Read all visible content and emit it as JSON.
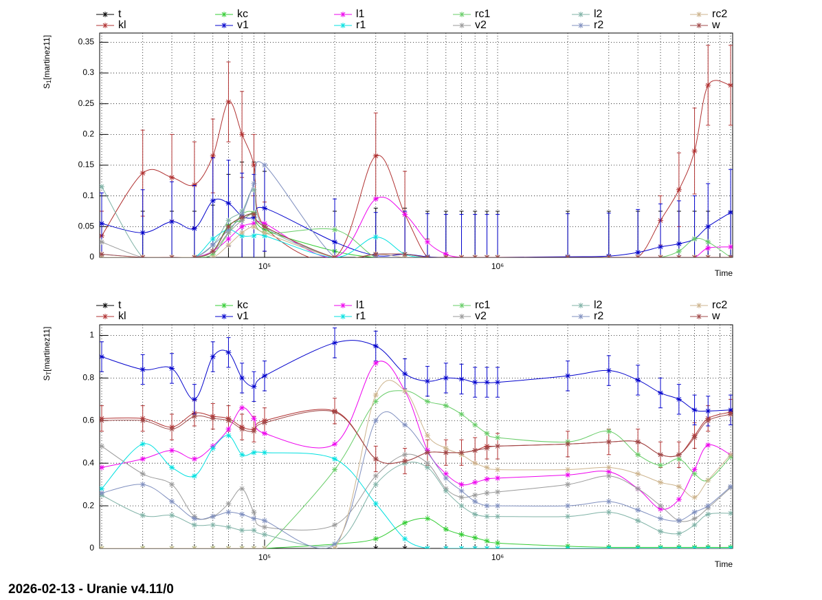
{
  "chart_data": [
    {
      "type": "line",
      "logx": true,
      "grid": true,
      "xlabel": "Time",
      "ylabel": [
        "S",
        "1",
        "[martinez11]"
      ],
      "x": [
        20000,
        30000,
        40000,
        50000,
        60000,
        70000,
        80000,
        90000,
        100000,
        200000,
        300000,
        400000,
        500000,
        600000,
        700000,
        800000,
        900000,
        1000000,
        2000000,
        3000000,
        4000000,
        5000000,
        6000000,
        7000000,
        8000000,
        10000000
      ],
      "xlim": [
        19600,
        10200000
      ],
      "xticks": [
        {
          "value": 100000,
          "label": "10⁵"
        },
        {
          "value": 1000000,
          "label": "10⁶"
        }
      ],
      "xminor": [
        20000,
        30000,
        40000,
        50000,
        60000,
        70000,
        80000,
        90000,
        200000,
        300000,
        400000,
        500000,
        600000,
        700000,
        800000,
        900000,
        2000000,
        3000000,
        4000000,
        5000000,
        6000000,
        7000000,
        8000000,
        9000000,
        10000000
      ],
      "ylim": [
        0,
        0.365
      ],
      "yticks": [
        0,
        0.05,
        0.1,
        0.15,
        0.2,
        0.25,
        0.3,
        0.35
      ],
      "series": [
        {
          "name": "t",
          "color": "#000000",
          "values": [
            0,
            0,
            0,
            0,
            0.01,
            0.05,
            0.065,
            0.07,
            0.05,
            0,
            0.005,
            0.005,
            0,
            0,
            0,
            0,
            0,
            0,
            0,
            0,
            0,
            0,
            0,
            0,
            0,
            0
          ],
          "errors": [
            0.075,
            0.075,
            0.075,
            0.075,
            0.075,
            0.085,
            0.09,
            0.085,
            0.09,
            0.075,
            0.075,
            0.075,
            0.075,
            0.075,
            0.075,
            0.075,
            0.075,
            0.075,
            0.075,
            0.075,
            0.075,
            0.075,
            0.075,
            0.075,
            0.075,
            0.075
          ]
        },
        {
          "name": "kl",
          "color": "#b03030",
          "values": [
            0.035,
            0.137,
            0.13,
            0.118,
            0.165,
            0.253,
            0.2,
            0.15,
            0.05,
            0,
            0.165,
            0.07,
            0,
            0,
            0,
            0,
            0,
            0,
            0,
            0,
            0,
            0.06,
            0.11,
            0.173,
            0.28,
            0.28
          ],
          "errors": [
            0.04,
            0.07,
            0.07,
            0.07,
            0.06,
            0.065,
            0.07,
            0.05,
            0.04,
            0.01,
            0.07,
            0.07,
            0.03,
            0,
            0,
            0,
            0,
            0,
            0,
            0,
            0,
            0.04,
            0.06,
            0.07,
            0.065,
            0.065
          ]
        },
        {
          "name": "kc",
          "color": "#33cc33",
          "values": [
            0,
            0,
            0,
            0,
            0.01,
            0.052,
            0.06,
            0.072,
            0.045,
            0.01,
            0,
            0,
            0,
            0,
            0,
            0,
            0,
            0,
            0,
            0,
            0,
            0,
            0,
            0,
            0,
            0
          ]
        },
        {
          "name": "v1",
          "color": "#0000cc",
          "values": [
            0.055,
            0.04,
            0.058,
            0.047,
            0.092,
            0.088,
            0.067,
            0.065,
            0.08,
            0.025,
            0.003,
            0.005,
            0.001,
            0,
            0,
            0,
            0,
            0,
            0.001,
            0.002,
            0.008,
            0.017,
            0.022,
            0.03,
            0.05,
            0.073
          ],
          "errors": [
            0.05,
            0.07,
            0.065,
            0.07,
            0.07,
            0.07,
            0.07,
            0.07,
            0.07,
            0.07,
            0.07,
            0.07,
            0.07,
            0.07,
            0.07,
            0.07,
            0.07,
            0.07,
            0.07,
            0.07,
            0.07,
            0.07,
            0.07,
            0.07,
            0.07,
            0.07
          ]
        },
        {
          "name": "l1",
          "color": "#ee00ee",
          "values": [
            0,
            0,
            0,
            0,
            0.01,
            0.03,
            0.05,
            0.055,
            0.055,
            0,
            0.095,
            0.07,
            0.025,
            0.005,
            0,
            0,
            0,
            0,
            0,
            0,
            0,
            0,
            0,
            0,
            0.015,
            0.017
          ]
        },
        {
          "name": "r1",
          "color": "#00e0e0",
          "values": [
            0,
            0,
            0,
            0,
            0.03,
            0.045,
            0.035,
            0.035,
            0.035,
            0,
            0.033,
            0.005,
            0,
            0,
            0,
            0,
            0,
            0,
            0,
            0,
            0,
            0,
            0,
            0,
            0,
            0
          ]
        },
        {
          "name": "rc1",
          "color": "#66cc66",
          "values": [
            0,
            0,
            0,
            0,
            0.005,
            0.04,
            0.07,
            0.072,
            0.04,
            0.045,
            0,
            0,
            0,
            0,
            0,
            0,
            0,
            0,
            0,
            0,
            0,
            0,
            0.01,
            0.03,
            0.025,
            0
          ]
        },
        {
          "name": "v2",
          "color": "#999999",
          "values": [
            0.025,
            0,
            0,
            0,
            0.01,
            0.04,
            0.06,
            0.07,
            0.05,
            0,
            0,
            0,
            0,
            0,
            0,
            0,
            0,
            0,
            0,
            0,
            0,
            0,
            0,
            0,
            0,
            0
          ]
        },
        {
          "name": "l2",
          "color": "#7fb2a6",
          "values": [
            0.115,
            0,
            0,
            0,
            0.02,
            0.06,
            0.075,
            0.11,
            0.05,
            0,
            0,
            0,
            0,
            0,
            0,
            0,
            0,
            0,
            0,
            0,
            0,
            0,
            0,
            0,
            0,
            0
          ]
        },
        {
          "name": "r2",
          "color": "#7f8fbf",
          "values": [
            0.005,
            0,
            0,
            0,
            0.02,
            0.045,
            0.07,
            0.12,
            0.15,
            0,
            0,
            0,
            0,
            0,
            0,
            0,
            0,
            0,
            0,
            0,
            0,
            0,
            0,
            0,
            0,
            0
          ]
        },
        {
          "name": "rc2",
          "color": "#ccb38c",
          "values": [
            0,
            0,
            0,
            0,
            0,
            0.02,
            0.04,
            0.05,
            0.04,
            0,
            0.005,
            0,
            0,
            0,
            0,
            0,
            0,
            0,
            0,
            0,
            0,
            0,
            0,
            0,
            0,
            0
          ]
        },
        {
          "name": "w",
          "color": "#a04848",
          "values": [
            0.005,
            0,
            0,
            0,
            0.01,
            0.05,
            0.065,
            0.07,
            0.05,
            0,
            0.005,
            0.005,
            0,
            0,
            0,
            0,
            0,
            0,
            0,
            0,
            0,
            0,
            0,
            0,
            0,
            0
          ]
        }
      ]
    },
    {
      "type": "line",
      "logx": true,
      "grid": true,
      "xlabel": "Time",
      "ylabel": [
        "S",
        "T",
        "[martinez11]"
      ],
      "x": [
        20000,
        30000,
        40000,
        50000,
        60000,
        70000,
        80000,
        90000,
        100000,
        200000,
        300000,
        400000,
        500000,
        600000,
        700000,
        800000,
        900000,
        1000000,
        2000000,
        3000000,
        4000000,
        5000000,
        6000000,
        7000000,
        8000000,
        10000000
      ],
      "xlim": [
        19600,
        10200000
      ],
      "xticks": [
        {
          "value": 100000,
          "label": "10⁵"
        },
        {
          "value": 1000000,
          "label": "10⁶"
        }
      ],
      "xminor": [
        20000,
        30000,
        40000,
        50000,
        60000,
        70000,
        80000,
        90000,
        200000,
        300000,
        400000,
        500000,
        600000,
        700000,
        800000,
        900000,
        2000000,
        3000000,
        4000000,
        5000000,
        6000000,
        7000000,
        8000000,
        9000000,
        10000000
      ],
      "ylim": [
        0,
        1.05
      ],
      "yticks": [
        0,
        0.2,
        0.4,
        0.6,
        0.8,
        1
      ],
      "series": [
        {
          "name": "t",
          "color": "#000000",
          "values": [
            0,
            0,
            0,
            0,
            0,
            0,
            0,
            0,
            0,
            0,
            0,
            0,
            0,
            0,
            0,
            0,
            0,
            0,
            0,
            0,
            0,
            0,
            0,
            0,
            0,
            0
          ]
        },
        {
          "name": "kl",
          "color": "#b03030",
          "values": [
            0.61,
            0.61,
            0.57,
            0.635,
            0.62,
            0.61,
            0.57,
            0.56,
            0.6,
            0.645,
            0.42,
            0.41,
            0.45,
            0.45,
            0.45,
            0.46,
            0.48,
            0.48,
            0.49,
            0.5,
            0.5,
            0.44,
            0.44,
            0.53,
            0.61,
            0.64
          ],
          "errors": [
            0.06,
            0.06,
            0.06,
            0.06,
            0.06,
            0.06,
            0.06,
            0.06,
            0.06,
            0.06,
            0.06,
            0.06,
            0.06,
            0.06,
            0.06,
            0.06,
            0.06,
            0.06,
            0.06,
            0.06,
            0.06,
            0.06,
            0.06,
            0.06,
            0.06,
            0.06
          ]
        },
        {
          "name": "kc",
          "color": "#33cc33",
          "values": [
            0,
            0,
            0,
            0,
            0,
            0,
            0,
            0,
            0,
            0.02,
            0.045,
            0.12,
            0.14,
            0.09,
            0.065,
            0.05,
            0.035,
            0.025,
            0.01,
            0.005,
            0.005,
            0.005,
            0.005,
            0.005,
            0.005,
            0.005
          ]
        },
        {
          "name": "v1",
          "color": "#0000cc",
          "values": [
            0.9,
            0.84,
            0.845,
            0.7,
            0.9,
            0.92,
            0.8,
            0.76,
            0.81,
            0.965,
            0.95,
            0.82,
            0.785,
            0.8,
            0.795,
            0.78,
            0.78,
            0.78,
            0.81,
            0.835,
            0.79,
            0.73,
            0.7,
            0.65,
            0.645,
            0.65
          ],
          "errors": [
            0.07,
            0.07,
            0.07,
            0.07,
            0.07,
            0.07,
            0.07,
            0.07,
            0.07,
            0.07,
            0.07,
            0.07,
            0.07,
            0.07,
            0.07,
            0.07,
            0.07,
            0.07,
            0.07,
            0.07,
            0.07,
            0.07,
            0.07,
            0.07,
            0.07,
            0.07
          ]
        },
        {
          "name": "l1",
          "color": "#ee00ee",
          "values": [
            0.38,
            0.42,
            0.46,
            0.42,
            0.48,
            0.56,
            0.66,
            0.61,
            0.54,
            0.49,
            0.87,
            0.74,
            0.46,
            0.35,
            0.3,
            0.31,
            0.325,
            0.33,
            0.345,
            0.36,
            0.28,
            0.185,
            0.23,
            0.37,
            0.485,
            0.44
          ]
        },
        {
          "name": "r1",
          "color": "#00e0e0",
          "values": [
            0.28,
            0.49,
            0.38,
            0.34,
            0.47,
            0.53,
            0.44,
            0.45,
            0.45,
            0.42,
            0.21,
            0.045,
            0,
            0,
            0,
            0,
            0,
            0,
            0,
            0,
            0,
            0,
            0,
            0,
            0,
            0
          ]
        },
        {
          "name": "rc1",
          "color": "#66cc66",
          "values": [
            0,
            0,
            0,
            0,
            0,
            0,
            0,
            0,
            0,
            0.37,
            0.69,
            0.74,
            0.69,
            0.67,
            0.63,
            0.58,
            0.54,
            0.52,
            0.5,
            0.55,
            0.44,
            0.39,
            0.42,
            0.35,
            0.32,
            0.43
          ]
        },
        {
          "name": "v2",
          "color": "#999999",
          "values": [
            0.48,
            0.35,
            0.3,
            0.15,
            0.15,
            0.21,
            0.28,
            0.17,
            0.1,
            0.11,
            0.34,
            0.44,
            0.4,
            0.28,
            0.24,
            0.25,
            0.26,
            0.265,
            0.3,
            0.34,
            0.28,
            0.2,
            0.13,
            0.14,
            0.19,
            0.285
          ]
        },
        {
          "name": "l2",
          "color": "#7fb2a6",
          "values": [
            0.25,
            0.155,
            0.155,
            0.11,
            0.11,
            0.1,
            0.085,
            0.085,
            0.065,
            0.02,
            0.3,
            0.4,
            0.38,
            0.27,
            0.2,
            0.16,
            0.15,
            0.15,
            0.15,
            0.17,
            0.13,
            0.08,
            0.07,
            0.11,
            0.16,
            0.165
          ]
        },
        {
          "name": "r2",
          "color": "#7f8fbf",
          "values": [
            0.26,
            0.3,
            0.22,
            0.14,
            0.15,
            0.17,
            0.16,
            0.14,
            0.13,
            0.02,
            0.6,
            0.58,
            0.45,
            0.33,
            0.27,
            0.22,
            0.2,
            0.2,
            0.2,
            0.22,
            0.18,
            0.14,
            0.13,
            0.17,
            0.2,
            0.29
          ]
        },
        {
          "name": "rc2",
          "color": "#ccb38c",
          "values": [
            0,
            0,
            0,
            0,
            0,
            0,
            0,
            0,
            0,
            0,
            0.72,
            0.74,
            0.53,
            0.47,
            0.44,
            0.4,
            0.38,
            0.37,
            0.37,
            0.38,
            0.35,
            0.31,
            0.29,
            0.24,
            0.32,
            0.44
          ]
        },
        {
          "name": "w",
          "color": "#a04848",
          "values": [
            0.6,
            0.6,
            0.56,
            0.62,
            0.61,
            0.6,
            0.56,
            0.55,
            0.59,
            0.64,
            0.42,
            0.41,
            0.45,
            0.45,
            0.45,
            0.46,
            0.47,
            0.48,
            0.49,
            0.5,
            0.5,
            0.44,
            0.44,
            0.52,
            0.6,
            0.63
          ]
        }
      ]
    }
  ],
  "footer": "2026-02-13 - Uranie v4.11/0"
}
